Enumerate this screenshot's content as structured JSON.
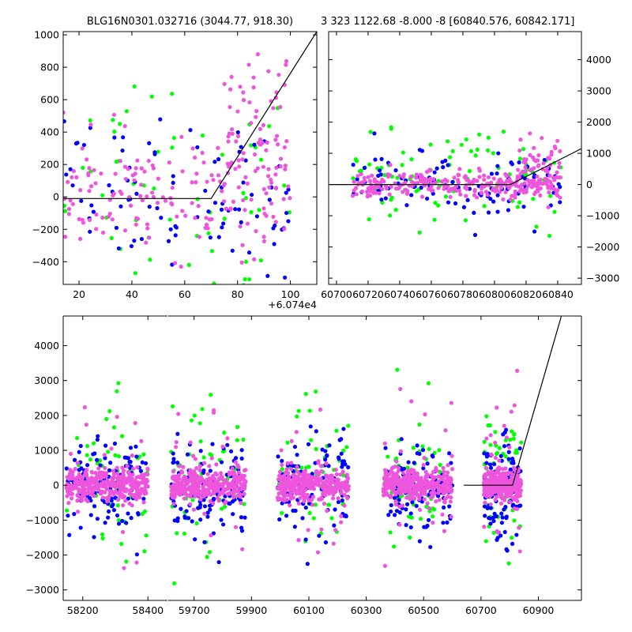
{
  "figure": {
    "background": "#ffffff",
    "marker_colors": {
      "green": "#00ff00",
      "blue": "#0000ff",
      "pink": "#ee55dd"
    },
    "line_color": "#000000"
  },
  "chart_data": [
    {
      "id": "top-left",
      "type": "scatter",
      "title": "BLG16N0301.032716 (3044.77, 918.30)",
      "xlabel": "",
      "ylabel": "",
      "x_offset_label": "+6.074e4",
      "xlim": [
        14,
        110
      ],
      "ylim": [
        -540,
        1020
      ],
      "xticks": [
        20,
        40,
        60,
        80,
        100
      ],
      "xtick_labels": [
        "20",
        "40",
        "60",
        "80",
        "100"
      ],
      "yticks": [
        -400,
        -200,
        0,
        200,
        400,
        600,
        800,
        1000
      ],
      "ytick_labels": [
        "−400",
        "−200",
        "0",
        "200",
        "400",
        "600",
        "800",
        "1000"
      ],
      "yaxis_side": "left",
      "model_line": {
        "x": [
          14,
          70,
          110
        ],
        "y": [
          -10,
          -10,
          1020
        ]
      },
      "scatter_spec": [
        {
          "color": "green",
          "n": 60,
          "center": [
            0,
            60
          ],
          "spread": [
            0,
            380
          ],
          "x_range": [
            14,
            100
          ]
        },
        {
          "color": "blue",
          "n": 90,
          "center": [
            0,
            0
          ],
          "spread": [
            0,
            220
          ],
          "x_range": [
            14,
            100
          ]
        },
        {
          "color": "pink",
          "n": 170,
          "center": [
            0,
            30
          ],
          "spread": [
            0,
            180
          ],
          "x_range": [
            14,
            100
          ]
        },
        {
          "color": "pink",
          "n": 50,
          "center": [
            0,
            450
          ],
          "spread": [
            0,
            250
          ],
          "x_range": [
            75,
            100
          ]
        }
      ]
    },
    {
      "id": "top-right",
      "type": "scatter",
      "title": "3 323 1122.68 -8.000 -8 [60840.576, 60842.171]",
      "xlabel": "",
      "ylabel": "",
      "xlim": [
        60695,
        60855
      ],
      "ylim": [
        -3200,
        4900
      ],
      "xticks": [
        60700,
        60720,
        60740,
        60760,
        60780,
        60800,
        60820,
        60840
      ],
      "xtick_labels": [
        "60700",
        "60720",
        "60740",
        "60760",
        "60780",
        "60800",
        "60820",
        "60840"
      ],
      "yticks": [
        -3000,
        -2000,
        -1000,
        0,
        1000,
        2000,
        3000,
        4000
      ],
      "ytick_labels": [
        "−3000",
        "−2000",
        "−1000",
        "0",
        "1000",
        "2000",
        "3000",
        "4000"
      ],
      "yaxis_side": "right",
      "model_line": {
        "x": [
          60695,
          60810,
          60855
        ],
        "y": [
          0,
          0,
          1150
        ]
      },
      "scatter_spec": [
        {
          "color": "green",
          "n": 90,
          "center": [
            0,
            150
          ],
          "spread": [
            0,
            700
          ],
          "x_range": [
            60710,
            60842
          ]
        },
        {
          "color": "blue",
          "n": 110,
          "center": [
            0,
            -50
          ],
          "spread": [
            0,
            550
          ],
          "x_range": [
            60710,
            60842
          ]
        },
        {
          "color": "pink",
          "n": 280,
          "center": [
            0,
            0
          ],
          "spread": [
            0,
            200
          ],
          "x_range": [
            60710,
            60842
          ]
        },
        {
          "color": "pink",
          "n": 50,
          "center": [
            0,
            700
          ],
          "spread": [
            0,
            500
          ],
          "x_range": [
            60815,
            60842
          ]
        }
      ]
    },
    {
      "id": "bottom",
      "type": "scatter",
      "title": "",
      "xlabel": "",
      "ylabel": "",
      "broken_axis": true,
      "segments": [
        {
          "xlim": [
            58140,
            58460
          ],
          "xticks": [
            58200,
            58400
          ],
          "xtick_labels": [
            "58200",
            "58400"
          ]
        },
        {
          "xlim": [
            59610,
            61050
          ],
          "xticks": [
            59700,
            59900,
            60100,
            60300,
            60500,
            60700,
            60900
          ],
          "xtick_labels": [
            "59700",
            "59900",
            "60100",
            "60300",
            "60500",
            "60700",
            "60900"
          ]
        }
      ],
      "ylim": [
        -3300,
        4850
      ],
      "yticks": [
        -3000,
        -2000,
        -1000,
        0,
        1000,
        2000,
        3000,
        4000
      ],
      "ytick_labels": [
        "−3000",
        "−2000",
        "−1000",
        "0",
        "1000",
        "2000",
        "3000",
        "4000"
      ],
      "yaxis_side": "left",
      "model_line": {
        "x": [
          60640,
          60810,
          60980
        ],
        "y": [
          0,
          0,
          4850
        ]
      },
      "seasons": [
        {
          "x_range": [
            58150,
            58400
          ],
          "segment": 0
        },
        {
          "x_range": [
            59620,
            59880
          ],
          "segment": 1
        },
        {
          "x_range": [
            59990,
            60240
          ],
          "segment": 1
        },
        {
          "x_range": [
            60360,
            60600
          ],
          "segment": 1
        },
        {
          "x_range": [
            60710,
            60840
          ],
          "segment": 1
        }
      ],
      "scatter_spec": [
        {
          "color": "green",
          "n": 55,
          "center": [
            0,
            300
          ],
          "spread": [
            0,
            1100
          ]
        },
        {
          "color": "blue",
          "n": 110,
          "center": [
            0,
            -150
          ],
          "spread": [
            0,
            700
          ]
        },
        {
          "color": "pink",
          "n": 320,
          "center": [
            0,
            0
          ],
          "spread": [
            0,
            220
          ]
        },
        {
          "color": "pink",
          "n": 25,
          "center": [
            0,
            300
          ],
          "spread": [
            0,
            1200
          ]
        }
      ]
    }
  ]
}
